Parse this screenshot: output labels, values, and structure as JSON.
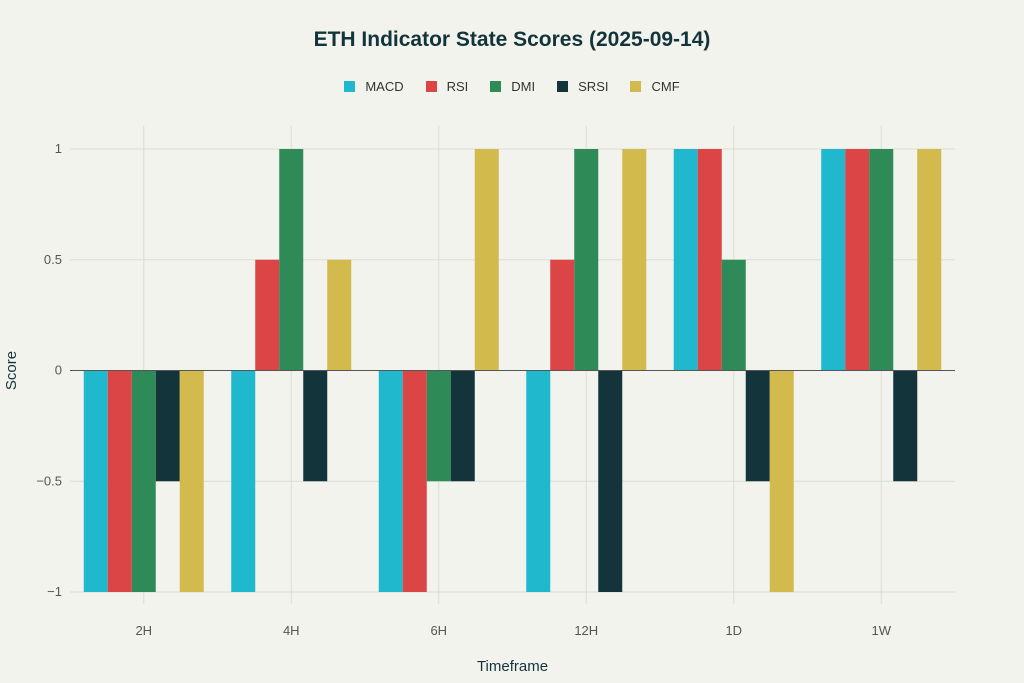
{
  "chart_data": {
    "type": "bar",
    "title": "ETH Indicator State Scores (2025-09-14)",
    "xlabel": "Timeframe",
    "ylabel": "Score",
    "categories": [
      "2H",
      "4H",
      "6H",
      "12H",
      "1D",
      "1W"
    ],
    "ylim": [
      -1,
      1
    ],
    "yticks": [
      -1,
      -0.5,
      0,
      0.5,
      1
    ],
    "ytick_labels": [
      "−1",
      "−0.5",
      "0",
      "0.5",
      "1"
    ],
    "grid": true,
    "legend_position": "top-center",
    "series": [
      {
        "name": "MACD",
        "color": "#1FB8CD",
        "values": [
          -1,
          -1,
          -1,
          -1,
          1,
          1
        ]
      },
      {
        "name": "RSI",
        "color": "#DB4545",
        "values": [
          -1,
          0.5,
          -1,
          0.5,
          1,
          1
        ]
      },
      {
        "name": "DMI",
        "color": "#2E8B57",
        "values": [
          -1,
          1,
          -0.5,
          1,
          0.5,
          1
        ]
      },
      {
        "name": "SRSI",
        "color": "#13343B",
        "values": [
          -0.5,
          -0.5,
          -0.5,
          -1,
          -0.5,
          -0.5
        ]
      },
      {
        "name": "CMF",
        "color": "#D2BA4C",
        "values": [
          -1,
          0.5,
          1,
          1,
          -1,
          1
        ]
      }
    ]
  }
}
